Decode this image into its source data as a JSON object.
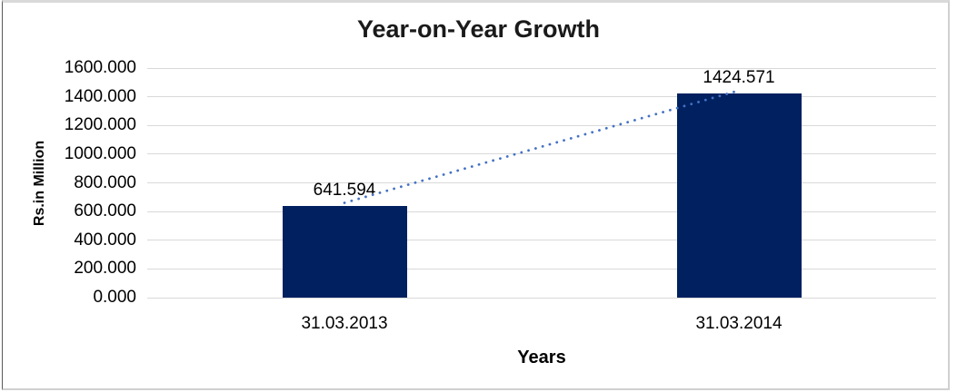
{
  "chart_data": {
    "type": "bar",
    "title": "Year-on-Year Growth",
    "xlabel": "Years",
    "ylabel": "Rs.in Million",
    "categories": [
      "31.03.2013",
      "31.03.2014"
    ],
    "values": [
      641.594,
      1424.571
    ],
    "data_labels": [
      "641.594",
      "1424.571"
    ],
    "y_ticks": [
      "1600.000",
      "1400.000",
      "1200.000",
      "1000.000",
      "800.000",
      "600.000",
      "400.000",
      "200.000",
      "0.000"
    ],
    "ylim": [
      0,
      1600
    ],
    "y_tick_step": 200,
    "grid": true,
    "legend": "none",
    "trendline": {
      "style": "dotted",
      "connects": [
        "top of 31.03.2013 bar",
        "top of 31.03.2014 bar"
      ]
    },
    "colors": {
      "bar": "#002060",
      "trendline": "#4472C4",
      "gridline": "#d9d9d9",
      "text": "#000000"
    }
  }
}
